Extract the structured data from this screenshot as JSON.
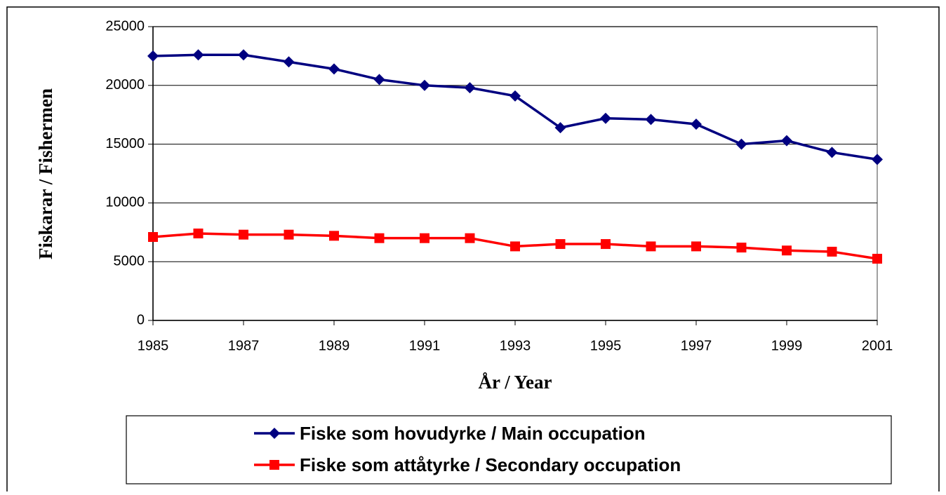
{
  "chart_data": {
    "type": "line",
    "x_label": "År / Year",
    "y_label": "Fiskarar / Fishermen",
    "x": [
      1985,
      1986,
      1987,
      1988,
      1989,
      1990,
      1991,
      1992,
      1993,
      1994,
      1995,
      1996,
      1997,
      1998,
      1999,
      2000,
      2001
    ],
    "series": [
      {
        "name": "Fiske som hovudyrke / Main occupation",
        "color": "#000080",
        "marker": "diamond",
        "values": [
          22500,
          22600,
          22600,
          22000,
          21400,
          20500,
          20000,
          19800,
          19100,
          16400,
          17200,
          17100,
          16700,
          15000,
          15300,
          14300,
          13700
        ]
      },
      {
        "name": "Fiske som attåtyrke / Secondary occupation",
        "color": "#ff0000",
        "marker": "square",
        "values": [
          7100,
          7400,
          7300,
          7300,
          7200,
          7000,
          7000,
          7000,
          6300,
          6500,
          6500,
          6300,
          6300,
          6200,
          5950,
          5850,
          5250
        ]
      }
    ],
    "xlim": [
      1985,
      2001
    ],
    "xticks": [
      1985,
      1987,
      1989,
      1991,
      1993,
      1995,
      1997,
      1999,
      2001
    ],
    "ylim": [
      0,
      25000
    ],
    "yticks": [
      0,
      5000,
      10000,
      15000,
      20000,
      25000
    ],
    "grid": true
  }
}
